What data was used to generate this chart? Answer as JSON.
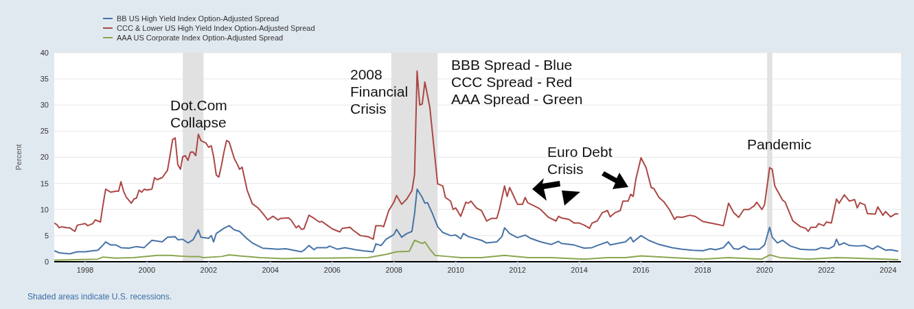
{
  "chart_data": {
    "type": "line",
    "ylabel": "Percent",
    "xlim": [
      "1997-01",
      "2024-06"
    ],
    "xticks": [
      {
        "value": "1998",
        "label": "1998"
      },
      {
        "value": "2000",
        "label": "2000"
      },
      {
        "value": "2002",
        "label": "2002"
      },
      {
        "value": "2004",
        "label": "2004"
      },
      {
        "value": "2006",
        "label": "2006"
      },
      {
        "value": "2008",
        "label": "2008"
      },
      {
        "value": "2010",
        "label": "2010"
      },
      {
        "value": "2012",
        "label": "2012"
      },
      {
        "value": "2014",
        "label": "2014"
      },
      {
        "value": "2016",
        "label": "2016"
      },
      {
        "value": "2018",
        "label": "2018"
      },
      {
        "value": "2020",
        "label": "2020"
      },
      {
        "value": "2022",
        "label": "2022"
      },
      {
        "value": "2024",
        "label": "2024"
      }
    ],
    "ylim": [
      0,
      40
    ],
    "yticks": [
      0,
      5,
      10,
      15,
      20,
      25,
      30,
      35,
      40
    ],
    "grid": "y",
    "legend": "top left",
    "marker": "none",
    "line_style": "solid",
    "bands": [
      {
        "axis": "x",
        "from": "2001-03",
        "to": "2001-11",
        "color": "#e1e1e1"
      },
      {
        "axis": "x",
        "from": "2007-12",
        "to": "2009-06",
        "color": "#e1e1e1"
      },
      {
        "axis": "x",
        "from": "2020-02",
        "to": "2020-04",
        "color": "#e1e1e1"
      }
    ],
    "annotations": [
      "Dot.Com\nCollapse",
      "2008\nFinancial\nCrisis",
      "Euro Debt\nCrisis",
      "Pandemic",
      "BBB Spread - Blue\nCCC Spread - Red\nAAA Spread - Green",
      "Shaded areas indicate U.S. recessions."
    ],
    "series": [
      {
        "name": "BB US High Yield Index Option-Adjusted Spread",
        "color": "#4572a7",
        "x": [
          "1997-01",
          "1997-03",
          "1997-07",
          "1997-10",
          "1998-01",
          "1998-04",
          "1998-06",
          "1998-08",
          "1998-09",
          "1998-11",
          "1999-01",
          "1999-03",
          "1999-06",
          "1999-09",
          "1999-12",
          "2000-01",
          "2000-03",
          "2000-07",
          "2000-09",
          "2000-12",
          "2001-01",
          "2001-03",
          "2001-05",
          "2001-07",
          "2001-09",
          "2001-10",
          "2002-01",
          "2002-02",
          "2002-03",
          "2002-04",
          "2002-07",
          "2002-09",
          "2002-11",
          "2003-01",
          "2003-04",
          "2003-06",
          "2003-10",
          "2004-01",
          "2004-04",
          "2004-07",
          "2004-10",
          "2005-01",
          "2005-02",
          "2005-04",
          "2005-06",
          "2005-07",
          "2005-11",
          "2005-12",
          "2006-03",
          "2006-06",
          "2006-10",
          "2007-01",
          "2007-05",
          "2007-06",
          "2007-08",
          "2007-10",
          "2008-01",
          "2008-02",
          "2008-04",
          "2008-06",
          "2008-08",
          "2008-09",
          "2008-10",
          "2008-12",
          "2009-01",
          "2009-02",
          "2009-04",
          "2009-06",
          "2009-08",
          "2009-11",
          "2010-01",
          "2010-03",
          "2010-04",
          "2010-06",
          "2010-11",
          "2011-01",
          "2011-05",
          "2011-07",
          "2011-08",
          "2011-10",
          "2012-01",
          "2012-04",
          "2012-06",
          "2012-10",
          "2013-02",
          "2013-05",
          "2013-06",
          "2013-11",
          "2014-03",
          "2014-06",
          "2014-08",
          "2014-12",
          "2015-01",
          "2015-03",
          "2015-07",
          "2015-09",
          "2015-10",
          "2016-01",
          "2016-04",
          "2016-08",
          "2017-01",
          "2017-05",
          "2017-09",
          "2018-01",
          "2018-04",
          "2018-06",
          "2018-09",
          "2018-11",
          "2019-01",
          "2019-03",
          "2019-05",
          "2019-07",
          "2019-11",
          "2020-01",
          "2020-03",
          "2020-04",
          "2020-06",
          "2020-08",
          "2020-11",
          "2021-03",
          "2021-06",
          "2021-09",
          "2021-11",
          "2022-02",
          "2022-04",
          "2022-05",
          "2022-06",
          "2022-08",
          "2022-10",
          "2023-01",
          "2023-04",
          "2023-07",
          "2023-09",
          "2023-12",
          "2024-02",
          "2024-05"
        ],
        "values": [
          2.1,
          1.7,
          1.5,
          1.9,
          1.9,
          2.1,
          2.2,
          3.2,
          3.8,
          3.2,
          3.2,
          2.7,
          2.6,
          2.9,
          2.7,
          3.2,
          4.1,
          3.8,
          4.7,
          4.8,
          4.2,
          4.3,
          3.6,
          4.2,
          6.1,
          4.7,
          4.5,
          5.0,
          3.8,
          5.4,
          6.4,
          6.9,
          6.1,
          5.8,
          4.4,
          3.6,
          2.6,
          2.5,
          2.4,
          2.5,
          2.2,
          1.9,
          2.2,
          3.1,
          2.3,
          2.7,
          2.7,
          3.0,
          2.4,
          2.7,
          2.3,
          2.1,
          1.9,
          3.4,
          3.1,
          4.3,
          5.2,
          6.2,
          4.7,
          5.4,
          5.8,
          9.2,
          13.9,
          12.3,
          11.2,
          11.3,
          9.2,
          6.7,
          5.6,
          5.0,
          5.1,
          4.4,
          5.4,
          4.8,
          4.1,
          3.6,
          3.8,
          4.8,
          6.5,
          5.4,
          4.6,
          5.1,
          4.5,
          3.8,
          3.3,
          3.9,
          3.5,
          3.2,
          2.6,
          2.7,
          3.1,
          3.8,
          3.2,
          3.4,
          3.8,
          4.7,
          3.8,
          5.0,
          4.1,
          3.3,
          2.7,
          2.4,
          2.2,
          2.1,
          2.5,
          2.3,
          2.7,
          3.8,
          2.5,
          2.4,
          3.0,
          2.4,
          2.4,
          3.2,
          6.6,
          4.7,
          3.6,
          4.1,
          3.0,
          2.4,
          2.3,
          2.3,
          2.7,
          2.5,
          3.0,
          4.3,
          3.2,
          3.6,
          3.1,
          3.0,
          3.1,
          2.4,
          3.0,
          2.2,
          2.3,
          2.0
        ]
      },
      {
        "name": "CCC & Lower US High Yield Index Option-Adjusted Spread",
        "color": "#aa4643",
        "x": [
          "1997-01",
          "1997-02",
          "1997-03",
          "1997-04",
          "1997-06",
          "1997-07",
          "1997-09",
          "1997-10",
          "1997-11",
          "1998-01",
          "1998-02",
          "1998-04",
          "1998-05",
          "1998-07",
          "1998-08",
          "1998-09",
          "1998-11",
          "1999-01",
          "1999-02",
          "1999-03",
          "1999-04",
          "1999-05",
          "1999-07",
          "1999-08",
          "1999-09",
          "1999-10",
          "1999-11",
          "1999-12",
          "2000-01",
          "2000-03",
          "2000-04",
          "2000-05",
          "2000-07",
          "2000-09",
          "2000-10",
          "2000-11",
          "2000-12",
          "2001-01",
          "2001-02",
          "2001-03",
          "2001-04",
          "2001-05",
          "2001-06",
          "2001-07",
          "2001-08",
          "2001-09",
          "2001-10",
          "2001-12",
          "2002-01",
          "2002-02",
          "2002-03",
          "2002-04",
          "2002-05",
          "2002-06",
          "2002-07",
          "2002-08",
          "2002-09",
          "2002-11",
          "2002-12",
          "2003-01",
          "2003-02",
          "2003-04",
          "2003-06",
          "2003-08",
          "2003-10",
          "2003-12",
          "2004-02",
          "2004-04",
          "2004-05",
          "2004-08",
          "2004-09",
          "2004-11",
          "2004-12",
          "2005-01",
          "2005-02",
          "2005-04",
          "2005-06",
          "2005-08",
          "2005-09",
          "2005-11",
          "2006-01",
          "2006-04",
          "2006-05",
          "2006-08",
          "2006-09",
          "2006-12",
          "2007-03",
          "2007-05",
          "2007-06",
          "2007-08",
          "2007-09",
          "2007-11",
          "2008-01",
          "2008-02",
          "2008-04",
          "2008-06",
          "2008-08",
          "2008-09",
          "2008-10",
          "2008-11",
          "2008-12",
          "2009-01",
          "2009-03",
          "2009-05",
          "2009-06",
          "2009-08",
          "2009-09",
          "2009-11",
          "2009-12",
          "2010-01",
          "2010-03",
          "2010-05",
          "2010-06",
          "2010-07",
          "2010-09",
          "2010-11",
          "2011-01",
          "2011-03",
          "2011-05",
          "2011-06",
          "2011-08",
          "2011-09",
          "2011-10",
          "2012-01",
          "2012-03",
          "2012-04",
          "2012-05",
          "2012-09",
          "2012-10",
          "2013-01",
          "2013-04",
          "2013-05",
          "2013-06",
          "2013-09",
          "2013-11",
          "2014-01",
          "2014-03",
          "2014-05",
          "2014-06",
          "2014-08",
          "2014-10",
          "2014-12",
          "2015-01",
          "2015-03",
          "2015-05",
          "2015-06",
          "2015-08",
          "2015-09",
          "2015-10",
          "2015-11",
          "2016-01",
          "2016-03",
          "2016-05",
          "2016-06",
          "2016-08",
          "2016-10",
          "2016-12",
          "2017-02",
          "2017-03",
          "2017-05",
          "2017-08",
          "2017-10",
          "2018-01",
          "2018-04",
          "2018-06",
          "2018-09",
          "2018-11",
          "2019-01",
          "2019-03",
          "2019-05",
          "2019-07",
          "2019-09",
          "2019-10",
          "2019-12",
          "2020-01",
          "2020-03",
          "2020-04",
          "2020-05",
          "2020-08",
          "2020-09",
          "2020-12",
          "2021-03",
          "2021-05",
          "2021-06",
          "2021-07",
          "2021-09",
          "2021-10",
          "2021-12",
          "2022-01",
          "2022-03",
          "2022-05",
          "2022-06",
          "2022-08",
          "2022-10",
          "2022-12",
          "2023-01",
          "2023-02",
          "2023-04",
          "2023-05",
          "2023-08",
          "2023-09",
          "2023-11",
          "2023-12",
          "2024-02",
          "2024-04",
          "2024-05"
        ],
        "values": [
          7.4,
          7.1,
          6.5,
          6.7,
          6.5,
          6.5,
          5.8,
          7.0,
          7.1,
          7.3,
          6.9,
          7.3,
          8.0,
          7.6,
          10.9,
          13.9,
          13.3,
          13.5,
          13.5,
          15.3,
          13.5,
          12.4,
          11.2,
          12.0,
          12.2,
          13.7,
          13.3,
          13.9,
          13.7,
          13.9,
          16.1,
          15.7,
          16.1,
          17.5,
          20.3,
          23.4,
          23.7,
          18.6,
          17.7,
          20.1,
          20.3,
          19.4,
          21.0,
          21.0,
          20.3,
          24.4,
          23.2,
          22.7,
          21.9,
          22.2,
          20.1,
          16.6,
          16.2,
          18.4,
          21.0,
          23.2,
          22.9,
          19.7,
          18.8,
          17.7,
          18.1,
          13.7,
          11.1,
          10.4,
          9.3,
          8.0,
          8.7,
          8.0,
          8.3,
          8.4,
          8.0,
          6.5,
          6.9,
          6.2,
          6.3,
          8.9,
          8.3,
          7.6,
          7.7,
          7.0,
          6.3,
          5.7,
          6.4,
          6.6,
          6.1,
          5.0,
          4.8,
          4.3,
          6.9,
          6.9,
          6.7,
          9.8,
          11.4,
          12.7,
          11.0,
          12.0,
          13.6,
          16.7,
          36.5,
          30.0,
          30.2,
          34.4,
          29.5,
          19.8,
          14.9,
          14.5,
          12.3,
          11.6,
          10.0,
          10.3,
          8.7,
          11.4,
          11.2,
          11.6,
          10.3,
          9.8,
          7.8,
          8.3,
          8.3,
          10.0,
          14.5,
          12.5,
          14.2,
          11.0,
          11.0,
          12.3,
          11.3,
          10.3,
          10.0,
          8.5,
          7.8,
          8.7,
          8.4,
          8.1,
          7.4,
          7.4,
          7.0,
          6.4,
          7.4,
          7.8,
          9.4,
          9.8,
          8.6,
          9.4,
          9.8,
          11.6,
          11.6,
          12.9,
          12.5,
          15.8,
          19.9,
          18.0,
          14.2,
          14.0,
          12.3,
          11.4,
          10.0,
          8.1,
          8.6,
          8.5,
          8.9,
          8.7,
          7.7,
          7.4,
          7.2,
          6.9,
          11.2,
          9.4,
          8.5,
          10.0,
          10.0,
          10.7,
          11.4,
          10.0,
          10.9,
          18.0,
          17.7,
          14.5,
          11.8,
          11.4,
          7.8,
          6.7,
          6.4,
          5.8,
          6.6,
          6.6,
          7.3,
          6.9,
          7.6,
          7.4,
          12.0,
          11.2,
          12.8,
          11.6,
          11.9,
          10.3,
          11.3,
          10.9,
          9.2,
          9.1,
          10.5,
          8.9,
          9.6,
          8.6,
          9.2,
          9.1
        ]
      },
      {
        "name": "AAA US Corporate Index Option-Adjusted Spread",
        "color": "#89a54e",
        "x": [
          "1997-01",
          "1998-06",
          "1998-08",
          "1999-01",
          "1999-08",
          "2000-05",
          "2000-10",
          "2001-05",
          "2001-09",
          "2001-11",
          "2002-06",
          "2002-09",
          "2003-01",
          "2003-09",
          "2004-06",
          "2005-03",
          "2005-09",
          "2007-03",
          "2007-10",
          "2008-02",
          "2008-07",
          "2008-09",
          "2008-10",
          "2008-12",
          "2009-01",
          "2009-03",
          "2009-05",
          "2009-10",
          "2010-03",
          "2010-11",
          "2011-08",
          "2012-05",
          "2013-02",
          "2014-03",
          "2014-12",
          "2015-07",
          "2016-01",
          "2017-01",
          "2018-01",
          "2018-11",
          "2019-12",
          "2020-03",
          "2020-07",
          "2021-06",
          "2022-05",
          "2022-12",
          "2024-05"
        ],
        "values": [
          0.3,
          0.5,
          0.9,
          0.7,
          0.8,
          1.2,
          1.2,
          1.0,
          1.0,
          0.8,
          1.0,
          1.3,
          1.1,
          0.8,
          0.6,
          0.7,
          0.7,
          0.8,
          1.4,
          1.9,
          2.0,
          4.1,
          3.9,
          3.5,
          3.8,
          2.4,
          1.2,
          1.0,
          0.8,
          0.8,
          1.2,
          0.8,
          0.8,
          0.5,
          0.8,
          0.8,
          1.1,
          0.8,
          0.5,
          0.8,
          0.5,
          1.3,
          0.8,
          0.5,
          0.8,
          0.7,
          0.4
        ]
      }
    ]
  }
}
